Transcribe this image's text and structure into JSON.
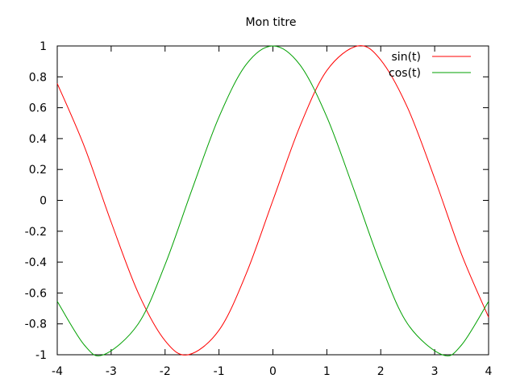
{
  "chart_data": {
    "type": "line",
    "title": "Mon titre",
    "xlabel": "",
    "ylabel": "",
    "xlim": [
      -4,
      4
    ],
    "ylim": [
      -1,
      1
    ],
    "grid": false,
    "legend_position": "top-right",
    "x_ticks": [
      -4,
      -3,
      -2,
      -1,
      0,
      1,
      2,
      3,
      4
    ],
    "y_ticks": [
      -1,
      -0.8,
      -0.6,
      -0.4,
      -0.2,
      0,
      0.2,
      0.4,
      0.6,
      0.8,
      1
    ],
    "series": [
      {
        "name": "sin(t)",
        "color": "#ff0000",
        "x": [
          -4,
          -3.5,
          -3,
          -2.5,
          -2,
          -1.5708,
          -1,
          -0.5,
          0,
          0.5,
          1,
          1.5708,
          2,
          2.5,
          3,
          3.5,
          4
        ],
        "y": [
          0.757,
          0.351,
          -0.141,
          -0.598,
          -0.909,
          -1.0,
          -0.841,
          -0.479,
          0.0,
          0.479,
          0.841,
          1.0,
          0.909,
          0.598,
          0.141,
          -0.351,
          -0.757
        ]
      },
      {
        "name": "cos(t)",
        "color": "#00a000",
        "x": [
          -4,
          -3.5,
          -3.1416,
          -2.5,
          -2,
          -1.5,
          -1,
          -0.5,
          0,
          0.5,
          1,
          1.5,
          2,
          2.5,
          3.1416,
          3.5,
          4
        ],
        "y": [
          -0.654,
          -0.936,
          -1.0,
          -0.801,
          -0.416,
          0.071,
          0.54,
          0.878,
          1.0,
          0.878,
          0.54,
          0.071,
          -0.416,
          -0.801,
          -1.0,
          -0.936,
          -0.654
        ]
      }
    ]
  }
}
